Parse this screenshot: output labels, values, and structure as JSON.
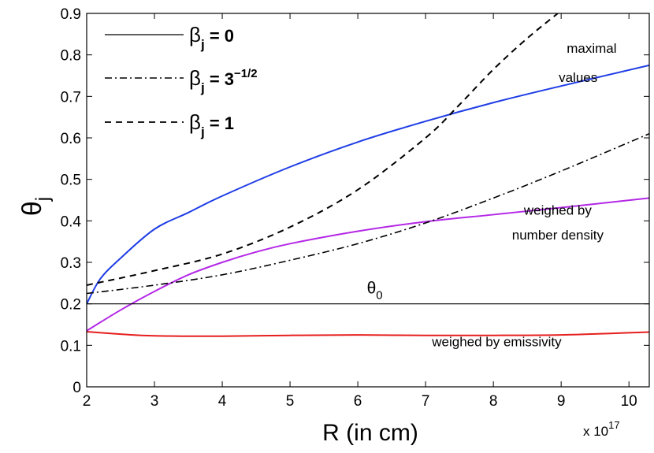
{
  "chart_data": {
    "type": "line",
    "title": "",
    "xlabel": "R (in cm)",
    "ylabel": "θj",
    "ylabel_main": "θ",
    "ylabel_sub": "j",
    "x_multiplier": {
      "base": "x 10",
      "exponent": "17"
    },
    "xlim": [
      2,
      10.3
    ],
    "ylim": [
      0,
      0.9
    ],
    "xticks": [
      2,
      3,
      4,
      5,
      6,
      7,
      8,
      9,
      10
    ],
    "yticks": [
      0,
      0.1,
      0.2,
      0.3,
      0.4,
      0.5,
      0.6,
      0.7,
      0.8,
      0.9
    ],
    "legend_position": "top-left",
    "legend": [
      {
        "symbol": "β",
        "sub": "j",
        "text": " = 0",
        "sup": "",
        "style": "solid"
      },
      {
        "symbol": "β",
        "sub": "j",
        "text": " = 3",
        "sup": "−1/2",
        "style": "dashdot"
      },
      {
        "symbol": "β",
        "sub": "j",
        "text": " = 1",
        "sup": "",
        "style": "dashed"
      }
    ],
    "series": [
      {
        "name": "maximal values",
        "color": "#1f3de6",
        "style": "solid",
        "x": [
          2.0,
          2.2,
          2.5,
          3.0,
          3.5,
          4.0,
          5.0,
          6.0,
          7.0,
          8.0,
          9.0,
          10.3
        ],
        "y": [
          0.2,
          0.26,
          0.31,
          0.38,
          0.42,
          0.46,
          0.53,
          0.59,
          0.64,
          0.685,
          0.725,
          0.775
        ]
      },
      {
        "name": "weighed by number density",
        "color": "#b428e6",
        "style": "solid",
        "x": [
          2.0,
          2.5,
          3.0,
          3.5,
          4.0,
          4.5,
          5.0,
          6.0,
          7.0,
          8.0,
          9.0,
          10.3
        ],
        "y": [
          0.135,
          0.185,
          0.23,
          0.27,
          0.3,
          0.325,
          0.345,
          0.375,
          0.398,
          0.415,
          0.432,
          0.455
        ]
      },
      {
        "name": "weighed by emissivity",
        "color": "#e61e1e",
        "style": "solid",
        "x": [
          2.0,
          2.5,
          3.0,
          4.0,
          5.0,
          6.0,
          7.0,
          8.0,
          9.0,
          10.3
        ],
        "y": [
          0.133,
          0.127,
          0.123,
          0.122,
          0.124,
          0.125,
          0.124,
          0.124,
          0.125,
          0.132
        ]
      },
      {
        "name": "θ0",
        "color": "#000000",
        "style": "solid",
        "x": [
          2.0,
          10.3
        ],
        "y": [
          0.2,
          0.2
        ]
      },
      {
        "name": "βj = 3^-1/2",
        "color": "#000000",
        "style": "dashdot",
        "x": [
          2.0,
          3.0,
          4.0,
          5.0,
          6.0,
          7.0,
          8.0,
          9.0,
          10.3
        ],
        "y": [
          0.225,
          0.245,
          0.27,
          0.305,
          0.345,
          0.395,
          0.455,
          0.52,
          0.61
        ]
      },
      {
        "name": "βj = 1",
        "color": "#000000",
        "style": "dashed",
        "x": [
          2.0,
          3.0,
          4.0,
          5.0,
          6.0,
          7.0,
          7.5,
          8.0,
          8.5,
          8.95
        ],
        "y": [
          0.245,
          0.28,
          0.32,
          0.385,
          0.475,
          0.6,
          0.68,
          0.765,
          0.84,
          0.9
        ]
      }
    ],
    "annotations": [
      {
        "id": "maximal",
        "text": "maximal",
        "x": 9.45,
        "y": 0.805
      },
      {
        "id": "values",
        "text": "values",
        "x": 9.25,
        "y": 0.735
      },
      {
        "id": "weighed-1",
        "text": "weighed by",
        "x": 8.95,
        "y": 0.415
      },
      {
        "id": "weighed-2",
        "text": "number density",
        "x": 8.95,
        "y": 0.355
      },
      {
        "id": "emissivity",
        "text": "weighed by emissivity",
        "x": 8.05,
        "y": 0.098
      }
    ],
    "theta0_label": {
      "main": "θ",
      "sub": "0",
      "x": 6.25,
      "y": 0.225
    }
  }
}
